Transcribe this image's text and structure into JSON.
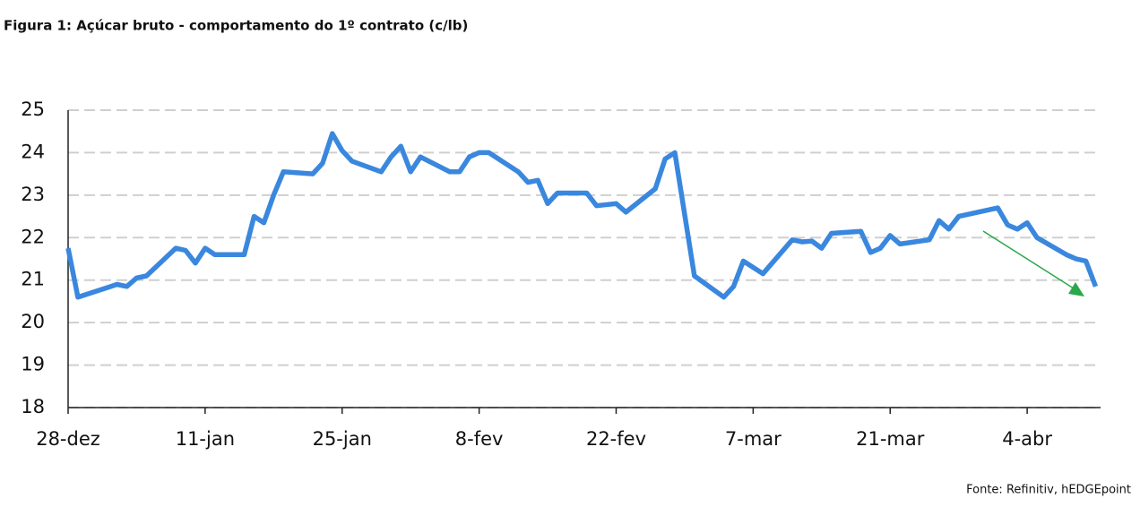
{
  "chart_data": {
    "type": "line",
    "title": "Figura 1: Açúcar bruto - comportamento do 1º contrato (c/lb)",
    "source": "Fonte: Refinitiv, hEDGEpoint",
    "color": "#3a87de",
    "x": [
      0,
      1,
      5,
      6,
      7,
      8,
      11,
      12,
      13,
      14,
      15,
      18,
      19,
      20,
      21,
      22,
      25,
      26,
      27,
      28,
      29,
      32,
      33,
      34,
      35,
      36,
      39,
      40,
      41,
      42,
      43,
      46,
      47,
      48,
      49,
      50,
      53,
      54,
      56,
      57,
      60,
      61,
      62,
      64,
      67,
      68,
      69,
      71,
      74,
      75,
      76,
      77,
      78,
      81,
      82,
      83,
      84,
      85,
      88,
      89,
      90,
      91,
      95,
      96,
      97,
      98,
      99,
      102,
      103,
      104,
      105
    ],
    "values": [
      21.75,
      20.6,
      20.9,
      20.85,
      21.05,
      21.1,
      21.75,
      21.7,
      21.4,
      21.75,
      21.6,
      21.6,
      22.5,
      22.35,
      23.0,
      23.55,
      23.5,
      23.75,
      24.45,
      24.05,
      23.8,
      23.55,
      23.9,
      24.15,
      23.55,
      23.9,
      23.55,
      23.55,
      23.9,
      24.0,
      24.0,
      23.55,
      23.3,
      23.35,
      22.8,
      23.05,
      23.05,
      22.75,
      22.8,
      22.6,
      23.15,
      23.85,
      24.0,
      21.1,
      20.6,
      20.85,
      21.45,
      21.15,
      21.95,
      21.9,
      21.92,
      21.75,
      22.1,
      22.15,
      21.65,
      21.75,
      22.05,
      21.85,
      21.95,
      22.4,
      22.2,
      22.5,
      22.7,
      22.3,
      22.2,
      22.35,
      22.0,
      21.6,
      21.5,
      21.45,
      20.85
    ],
    "xlim": [
      0,
      105.5
    ],
    "xticks": [
      {
        "value": 0,
        "label": "28-dez"
      },
      {
        "value": 14,
        "label": "11-jan"
      },
      {
        "value": 28,
        "label": "25-jan"
      },
      {
        "value": 42,
        "label": "8-fev"
      },
      {
        "value": 56,
        "label": "22-fev"
      },
      {
        "value": 70,
        "label": "7-mar"
      },
      {
        "value": 84,
        "label": "21-mar"
      },
      {
        "value": 98,
        "label": "4-abr"
      }
    ],
    "ylim": [
      18,
      25
    ],
    "yticks": [
      18,
      19,
      20,
      21,
      22,
      23,
      24,
      25
    ],
    "grid": true
  }
}
